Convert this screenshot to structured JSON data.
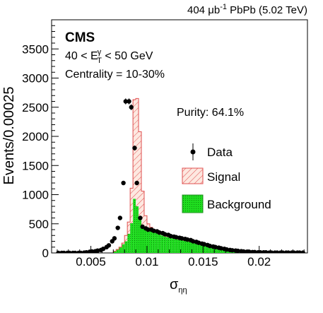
{
  "chart_data": {
    "type": "histogram",
    "title": "",
    "top_label": {
      "lumi": "404",
      "unit_mu": "μb",
      "unit_exp": "-1",
      "rest": " PbPb (5.02 TeV)"
    },
    "cms_label": "CMS",
    "selection_text": {
      "prefix": "40 < E",
      "sup": "γ",
      "sub": "T",
      "suffix": " < 50 GeV"
    },
    "centrality_text": "Centrality = 10-30%",
    "purity_text": "Purity: 64.1%",
    "xlabel": {
      "main": "σ",
      "sub": "ηη"
    },
    "ylabel": "Events/0.00025",
    "xlim": [
      0.0015,
      0.0243
    ],
    "ylim": [
      0,
      4000
    ],
    "x_tick_values": [
      0.005,
      0.01,
      0.015,
      0.02
    ],
    "x_tick_labels": [
      "0.005",
      "0.01",
      "0.015",
      "0.02"
    ],
    "y_tick_values": [
      0,
      500,
      1000,
      1500,
      2000,
      2500,
      3000,
      3500
    ],
    "y_tick_labels": [
      "0",
      "500",
      "1000",
      "1500",
      "2000",
      "2500",
      "3000",
      "3500"
    ],
    "bin_width": 0.00025,
    "bin_start": 0.007,
    "legend": [
      {
        "label": "Data",
        "style": "marker"
      },
      {
        "label": "Signal",
        "style": "hatched"
      },
      {
        "label": "Background",
        "style": "filled"
      }
    ],
    "colors": {
      "signal_line": "#e05050",
      "signal_fill": "#fde8e0",
      "background_fill": "#1fdc1f",
      "background_line": "#1f8f1f",
      "data": "#000000"
    },
    "series": [
      {
        "name": "Background",
        "values": [
          30,
          60,
          100,
          150,
          200,
          330,
          510,
          930,
          800,
          580,
          460,
          420,
          400,
          380,
          360,
          340,
          320,
          300,
          280,
          270,
          260,
          250,
          240,
          230,
          220,
          210,
          200,
          190,
          180,
          170,
          160,
          150,
          140,
          130,
          120,
          110,
          100,
          90,
          80,
          70,
          60,
          50,
          40,
          35,
          30,
          25,
          20,
          15
        ]
      },
      {
        "name": "Signal",
        "values": [
          0,
          0,
          0,
          20,
          100,
          200,
          600,
          1700,
          1850,
          1500,
          600,
          220,
          100,
          60,
          40,
          30,
          20,
          20,
          10,
          10,
          10,
          10,
          5,
          5,
          5,
          5,
          5,
          5,
          5,
          5,
          5,
          5,
          5,
          5,
          5,
          5,
          5,
          5,
          5,
          5,
          5,
          5,
          5,
          5,
          5,
          5,
          5,
          5
        ]
      },
      {
        "name": "Data",
        "x": [
          0.0021,
          0.0024,
          0.0026,
          0.0029,
          0.0031,
          0.0034,
          0.0036,
          0.0039,
          0.0041,
          0.0044,
          0.0046,
          0.0049,
          0.0051,
          0.0054,
          0.0056,
          0.0059,
          0.0061,
          0.0064,
          0.0066,
          0.0069,
          0.0071,
          0.0074,
          0.0076,
          0.0079,
          0.0081,
          0.0084,
          0.0086,
          0.0089,
          0.0091,
          0.0094,
          0.0096,
          0.0099,
          0.0101,
          0.0104,
          0.0106,
          0.0109,
          0.0111,
          0.0114,
          0.0116,
          0.0119,
          0.0121,
          0.0124,
          0.0126,
          0.0129,
          0.0131,
          0.0134,
          0.0136,
          0.0139,
          0.0141,
          0.0144,
          0.0146,
          0.0149,
          0.0151,
          0.0154,
          0.0156,
          0.0159,
          0.0161,
          0.0164,
          0.0166,
          0.0169,
          0.0171,
          0.0174,
          0.0176,
          0.0179,
          0.0181,
          0.0184,
          0.0186,
          0.0189,
          0.0191,
          0.0194,
          0.0196,
          0.0199,
          0.0201,
          0.0204,
          0.0206,
          0.0209,
          0.0211,
          0.0214,
          0.0216,
          0.0219,
          0.0221,
          0.0224,
          0.0226,
          0.0229,
          0.0231,
          0.0234,
          0.0236,
          0.0239
        ],
        "values": [
          0,
          0,
          0,
          0,
          0,
          0,
          0,
          0,
          0,
          5,
          10,
          20,
          25,
          30,
          40,
          50,
          70,
          100,
          130,
          200,
          250,
          430,
          600,
          1200,
          2600,
          2600,
          2500,
          1800,
          1200,
          600,
          450,
          420,
          400,
          400,
          380,
          370,
          350,
          340,
          320,
          310,
          290,
          280,
          270,
          260,
          250,
          240,
          230,
          220,
          200,
          190,
          175,
          160,
          150,
          135,
          120,
          110,
          100,
          90,
          80,
          70,
          60,
          50,
          45,
          40,
          35,
          30,
          25,
          20,
          20,
          15,
          15,
          10,
          10,
          10,
          10,
          5,
          5,
          5,
          5,
          5,
          5,
          5,
          5,
          5,
          5,
          5,
          5,
          5
        ]
      }
    ]
  }
}
